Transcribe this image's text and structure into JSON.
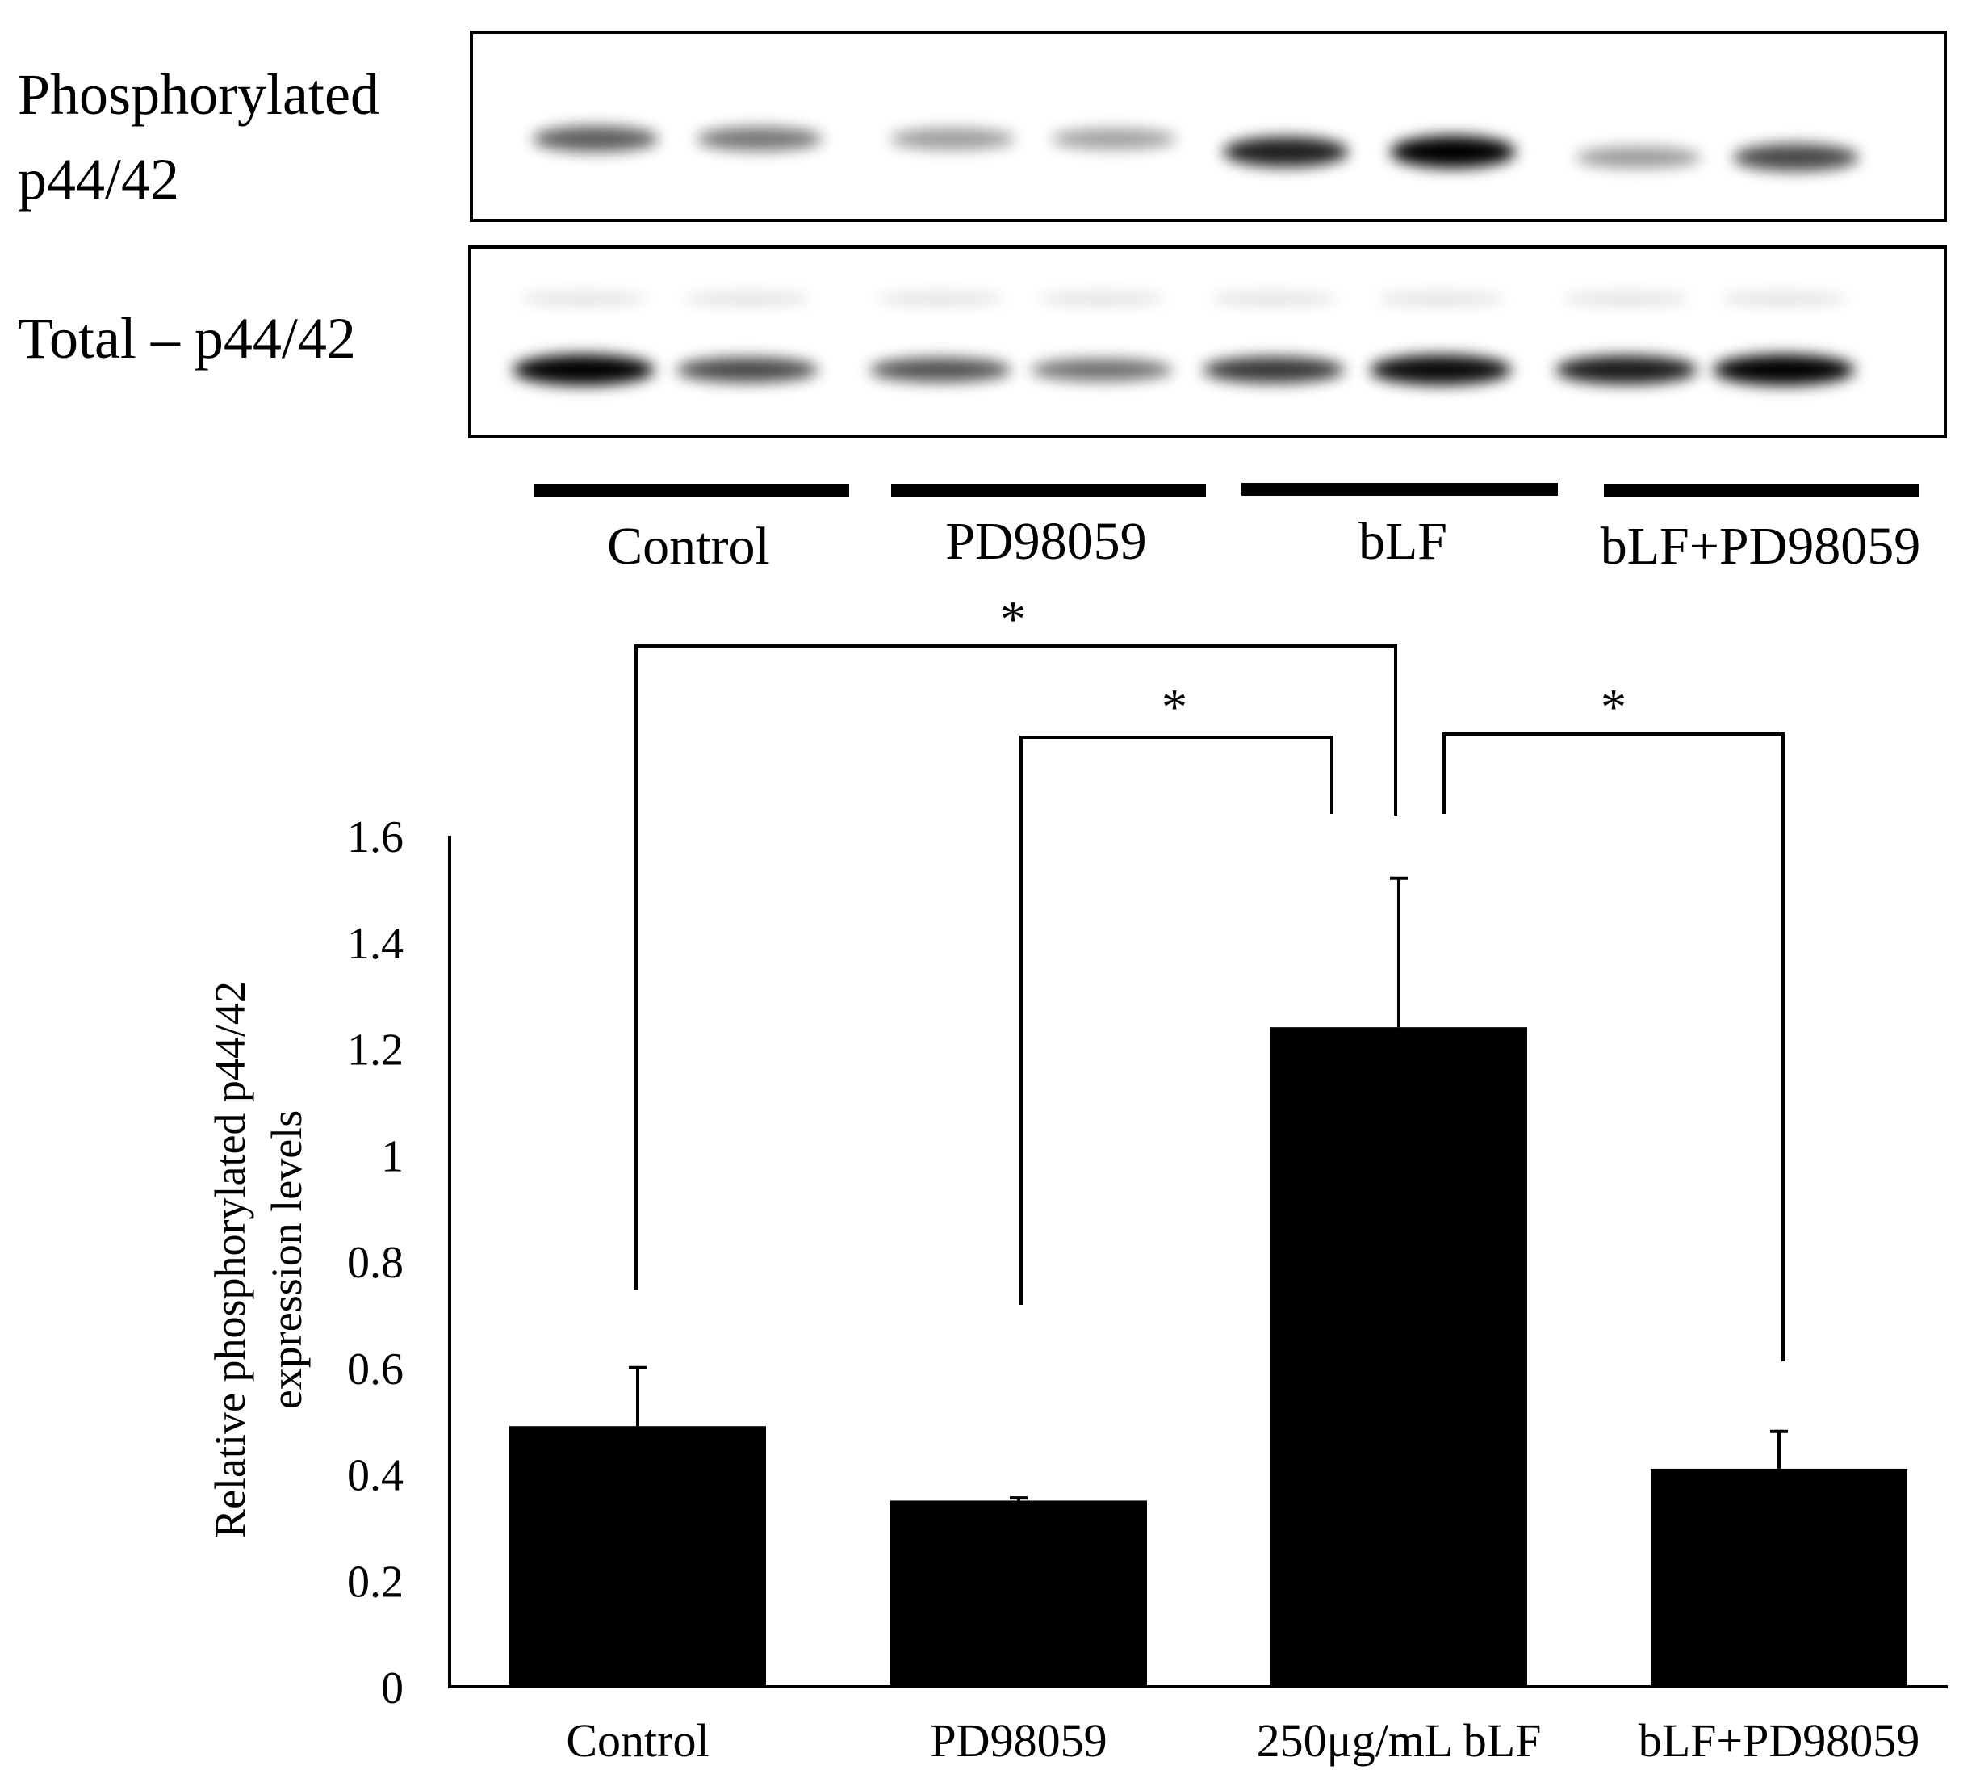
{
  "blot": {
    "row_labels": {
      "phospho_line1": "Phosphorylated",
      "phospho_line2": "p44/42",
      "total": "Total – p44/42"
    },
    "group_labels": [
      "Control",
      "PD98059",
      "bLF",
      "bLF+PD98059"
    ],
    "phospho_band_intensity": [
      0.55,
      0.42,
      0.25,
      0.22,
      0.85,
      1.0,
      0.25,
      0.65
    ],
    "total_band_intensity": [
      1.0,
      0.6,
      0.55,
      0.4,
      0.7,
      0.95,
      0.85,
      1.0
    ]
  },
  "chart_data": {
    "type": "bar",
    "categories": [
      "Control",
      "PD98059",
      "250μg/mL bLF",
      "bLF+PD98059"
    ],
    "series": [
      {
        "values": [
          0.49,
          0.35,
          1.24,
          0.41
        ],
        "error": [
          0.11,
          0.005,
          0.28,
          0.07
        ]
      }
    ],
    "ylabel_line1": "Relative phosphorylated p44/42",
    "ylabel_line2": "expression levels",
    "ylim": [
      0,
      1.6
    ],
    "yticks": [
      "0",
      "0.2",
      "0.4",
      "0.6",
      "0.8",
      "1",
      "1.2",
      "1.4",
      "1.6"
    ],
    "bar_color": "#000000",
    "grid": false,
    "significance": [
      {
        "pair": [
          "Control",
          "250μg/mL bLF"
        ],
        "label": "*"
      },
      {
        "pair": [
          "PD98059",
          "250μg/mL bLF"
        ],
        "label": "*"
      },
      {
        "pair": [
          "250μg/mL bLF",
          "bLF+PD98059"
        ],
        "label": "*"
      }
    ]
  }
}
